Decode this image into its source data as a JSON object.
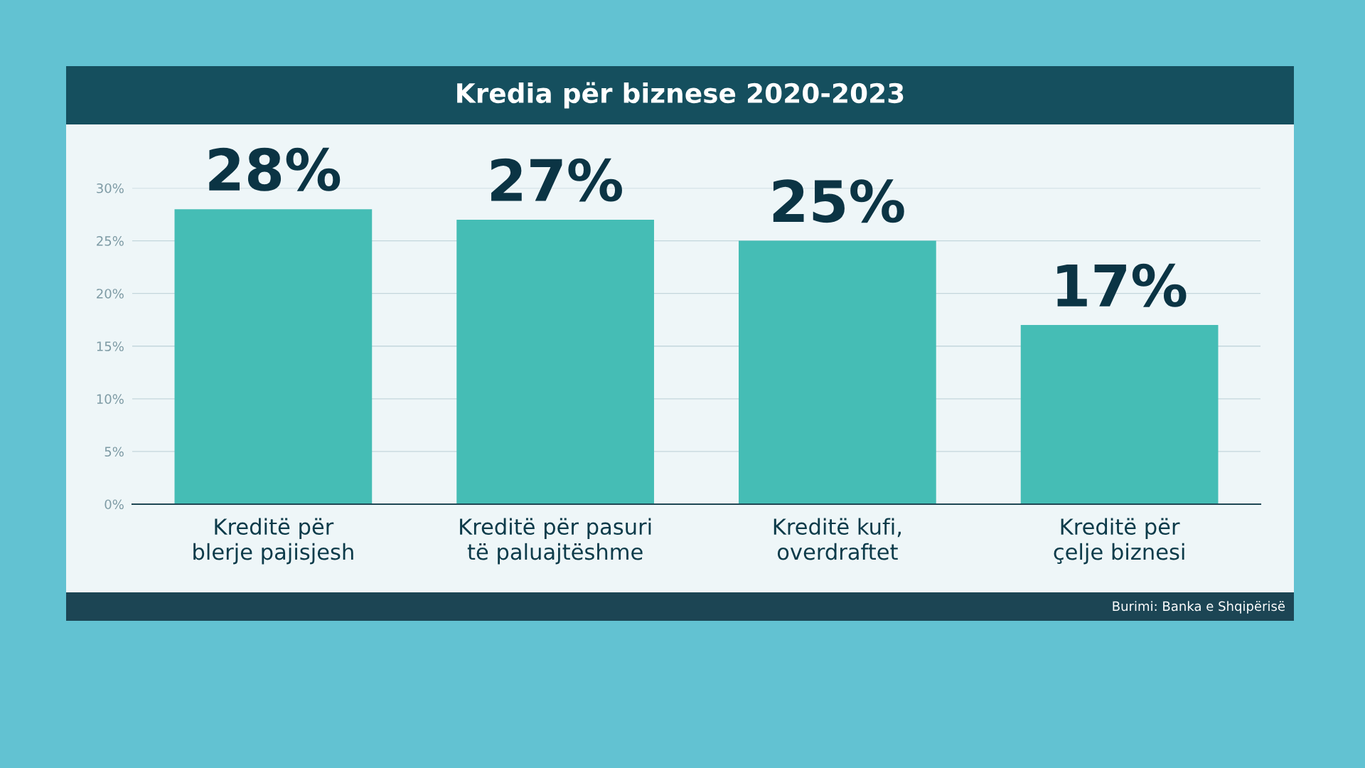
{
  "chart_data": {
    "type": "bar",
    "title": "Kredia për biznese 2020-2023",
    "categories": [
      "Kreditë për\nblerje pajisjesh",
      "Kreditë për pasuri\ntë paluajtëshme",
      "Kreditë kufi,\noverdraftet",
      "Kreditë për\nçelje biznesi"
    ],
    "values": [
      28,
      27,
      25,
      17
    ],
    "value_labels": [
      "28%",
      "27%",
      "25%",
      "17%"
    ],
    "color": "#45bdb5",
    "ylim": [
      0,
      30
    ],
    "yticks": [
      {
        "value": 0,
        "label": "0%"
      },
      {
        "value": 5,
        "label": "5%"
      },
      {
        "value": 10,
        "label": "10%"
      },
      {
        "value": 15,
        "label": "15%"
      },
      {
        "value": 20,
        "label": "20%"
      },
      {
        "value": 25,
        "label": "25%"
      },
      {
        "value": 30,
        "label": "30%"
      }
    ],
    "grid": "y",
    "annotations": [
      "Burimi: Banka e Shqipërisë"
    ]
  }
}
